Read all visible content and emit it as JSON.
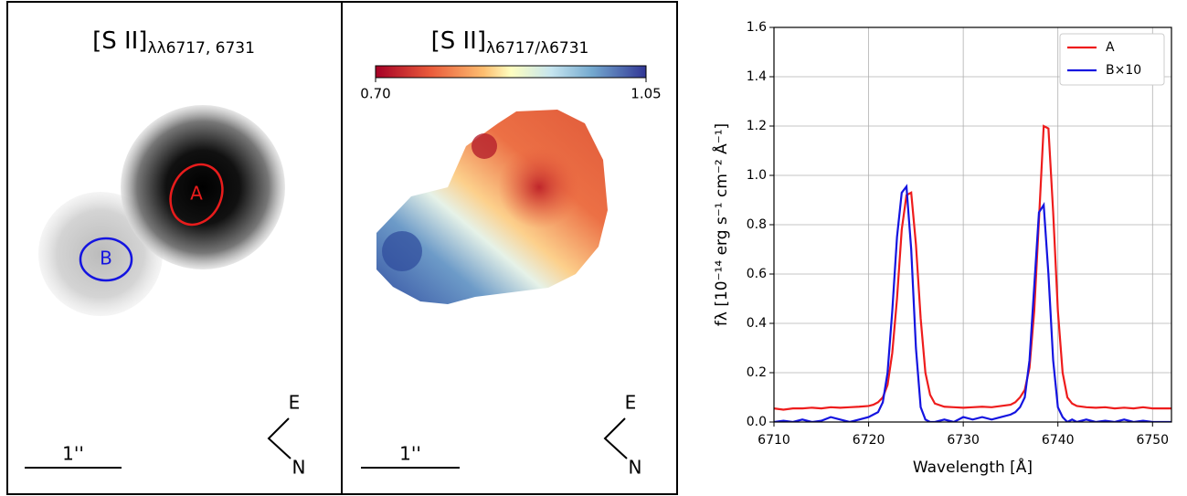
{
  "chart_data": [
    {
      "type": "image",
      "title": "[S II]",
      "title_subscript": "λλ6717, 6731",
      "regions": [
        "A",
        "B"
      ],
      "scalebar": "1''",
      "compass": [
        "E",
        "N"
      ]
    },
    {
      "type": "image",
      "title": "[S II]",
      "title_subscript": "λ6717/λ6731",
      "colormap": "RdYlBu",
      "clim": [
        0.7,
        1.05
      ],
      "colorbar_ticks": [
        {
          "value": 0.7,
          "label": "0.70"
        },
        {
          "value": 1.05,
          "label": "1.05"
        }
      ],
      "scalebar": "1''",
      "compass": [
        "E",
        "N"
      ]
    },
    {
      "type": "line",
      "xlabel": "Wavelength [Å]",
      "ylabel": "fλ [10⁻¹⁴ erg s⁻¹ cm⁻² Å⁻¹]",
      "x": [
        6710,
        6711,
        6712,
        6713,
        6714,
        6715,
        6716,
        6717,
        6718,
        6719,
        6720,
        6720.5,
        6721,
        6721.5,
        6722,
        6722.5,
        6723,
        6723.5,
        6724,
        6724.5,
        6725,
        6725.5,
        6726,
        6726.5,
        6727,
        6728,
        6729,
        6730,
        6731,
        6732,
        6733,
        6734,
        6735,
        6735.5,
        6736,
        6736.5,
        6737,
        6737.5,
        6738,
        6738.5,
        6739,
        6739.5,
        6740,
        6740.5,
        6741,
        6741.5,
        6742,
        6743,
        6744,
        6745,
        6746,
        6747,
        6748,
        6749,
        6750,
        6751,
        6752
      ],
      "series": [
        {
          "name": "A",
          "color": "#ee1c1c",
          "values": [
            0.055,
            0.05,
            0.055,
            0.055,
            0.058,
            0.055,
            0.06,
            0.058,
            0.06,
            0.062,
            0.065,
            0.07,
            0.08,
            0.1,
            0.15,
            0.28,
            0.5,
            0.78,
            0.92,
            0.93,
            0.72,
            0.42,
            0.2,
            0.11,
            0.075,
            0.062,
            0.06,
            0.058,
            0.06,
            0.062,
            0.06,
            0.065,
            0.07,
            0.08,
            0.1,
            0.13,
            0.22,
            0.45,
            0.82,
            1.2,
            1.19,
            0.85,
            0.45,
            0.2,
            0.1,
            0.075,
            0.065,
            0.06,
            0.058,
            0.06,
            0.055,
            0.058,
            0.055,
            0.06,
            0.055,
            0.055,
            0.055
          ]
        },
        {
          "name": "B×10",
          "color": "#1414e0",
          "values": [
            0.0,
            0.005,
            0.0,
            0.01,
            0.0,
            0.005,
            0.02,
            0.01,
            0.0,
            0.01,
            0.02,
            0.03,
            0.04,
            0.08,
            0.2,
            0.45,
            0.75,
            0.93,
            0.955,
            0.7,
            0.3,
            0.06,
            0.01,
            0.0,
            0.0,
            0.01,
            0.0,
            0.02,
            0.01,
            0.02,
            0.01,
            0.02,
            0.03,
            0.04,
            0.06,
            0.1,
            0.25,
            0.55,
            0.85,
            0.88,
            0.6,
            0.25,
            0.06,
            0.02,
            0.0,
            0.01,
            0.0,
            0.01,
            0.0,
            0.005,
            0.0,
            0.01,
            0.0,
            0.005,
            0.0,
            0.0,
            0.0
          ]
        }
      ],
      "xlim": [
        6710,
        6752
      ],
      "xticks": [
        6710,
        6720,
        6730,
        6740,
        6750
      ],
      "ylim": [
        0,
        1.6
      ],
      "yticks": [
        {
          "value": 0,
          "label": "0.0"
        },
        0.2,
        0.4,
        0.6,
        0.8,
        {
          "value": 1,
          "label": "1.0"
        },
        1.2,
        1.4,
        1.6
      ],
      "grid": true,
      "legend": "upper right"
    }
  ]
}
